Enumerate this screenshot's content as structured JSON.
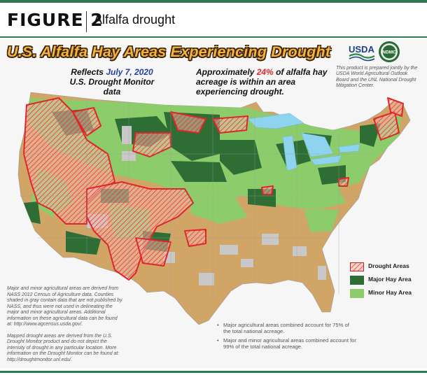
{
  "header": {
    "figure_label": "FIGURE 2",
    "caption": "Alfalfa drought"
  },
  "map": {
    "title": "U.S. Alfalfa Hay Areas Experiencing Drought",
    "reflects_prefix": "Reflects",
    "reflects_date": "July 7, 2020",
    "reflects_source": "U.S. Drought Monitor data",
    "acreage_prefix": "Approximately",
    "acreage_percent": "24%",
    "acreage_suffix": "of alfalfa hay acreage is within an area experiencing drought.",
    "credit": "This product is prepared jointly by the USDA World Agricultural Outlook Board and the UNL National Drought Mitigation Center.",
    "logos": {
      "usda": "USDA",
      "ndmc": "NDMC"
    },
    "legend": [
      {
        "label": "Drought Areas",
        "color": "#f2a0a0",
        "hatch": true
      },
      {
        "label": "Major Hay Area",
        "color": "#2e6e35",
        "hatch": false
      },
      {
        "label": "Minor Hay Area",
        "color": "#8ccc6a",
        "hatch": false
      }
    ],
    "colors": {
      "background_land": "#d0a566",
      "no_data": "#c8c8c8",
      "water": "#8fd4ee",
      "drought_outline": "#e0262a"
    },
    "notes_left": [
      "Major and minor agricultural areas are derived from NASS 2012 Census of Agriculture data. Counties shaded in gray contain data that are not published by NASS, and thus were not used in delineating the major and minor agricultural areas. Additional information on these agricultural data can be found at: http://www.agcensus.usda.gov/.",
      "Mapped drought areas are derived from the U.S. Drought Monitor product and do not depict the intensity of drought in any particular location. More information on the Drought Monitor can be found at: http://droughtmonitor.unl.edu/."
    ],
    "notes_bottom": [
      "Major agricultural areas combined account for 75% of the total national acreage.",
      "Major and minor agricultural areas combined account for 99% of the total national acreage."
    ]
  }
}
